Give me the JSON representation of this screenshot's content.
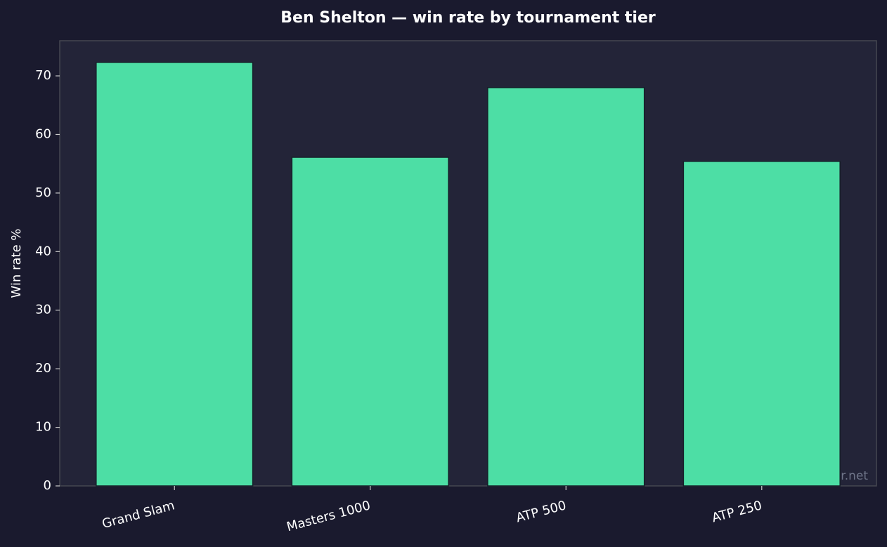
{
  "chart_data": {
    "type": "bar",
    "title": "Ben Shelton — win rate by tournament tier",
    "y_label": "Win rate %",
    "categories": [
      "Grand Slam",
      "Masters 1000",
      "ATP 500",
      "ATP 250"
    ],
    "values": [
      72.3,
      56.1,
      68.0,
      55.4
    ],
    "color": "#4ddea5",
    "ylim": [
      0,
      76
    ],
    "yticks": [
      0,
      10,
      20,
      30,
      40,
      50,
      60,
      70
    ],
    "watermark": "tennispredictor.net"
  }
}
